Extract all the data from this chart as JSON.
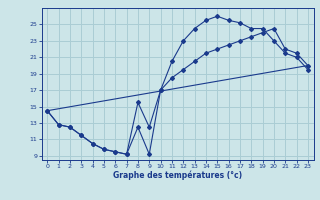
{
  "xlabel": "Graphe des températures (°c)",
  "bg_color": "#cce5e8",
  "grid_color": "#aacdd4",
  "line_color": "#1a3a8c",
  "xlim": [
    -0.5,
    23.5
  ],
  "ylim": [
    8.5,
    27.0
  ],
  "yticks": [
    9,
    11,
    13,
    15,
    17,
    19,
    21,
    23,
    25
  ],
  "xticks": [
    0,
    1,
    2,
    3,
    4,
    5,
    6,
    7,
    8,
    9,
    10,
    11,
    12,
    13,
    14,
    15,
    16,
    17,
    18,
    19,
    20,
    21,
    22,
    23
  ],
  "series1_x": [
    0,
    1,
    2,
    3,
    4,
    5,
    6,
    7,
    8,
    9,
    10,
    11,
    12,
    13,
    14,
    15,
    16,
    17,
    18,
    19,
    20,
    21,
    22,
    23
  ],
  "series1_y": [
    14.5,
    12.8,
    12.5,
    11.5,
    10.5,
    9.8,
    9.5,
    9.2,
    12.5,
    9.2,
    17.0,
    20.5,
    23.0,
    24.5,
    25.5,
    26.0,
    25.5,
    25.2,
    24.5,
    24.5,
    23.0,
    21.5,
    21.0,
    19.5
  ],
  "series2_x": [
    0,
    1,
    2,
    3,
    4,
    5,
    6,
    7,
    8,
    9,
    10,
    11,
    12,
    13,
    14,
    15,
    16,
    17,
    18,
    19,
    20,
    21,
    22,
    23
  ],
  "series2_y": [
    14.5,
    12.8,
    12.5,
    11.5,
    10.5,
    9.8,
    9.5,
    9.2,
    15.5,
    12.5,
    17.0,
    18.5,
    19.5,
    20.5,
    21.5,
    22.0,
    22.5,
    23.0,
    23.5,
    24.0,
    24.5,
    22.0,
    21.5,
    20.0
  ],
  "series3_x": [
    0,
    23
  ],
  "series3_y": [
    14.5,
    20.0
  ]
}
